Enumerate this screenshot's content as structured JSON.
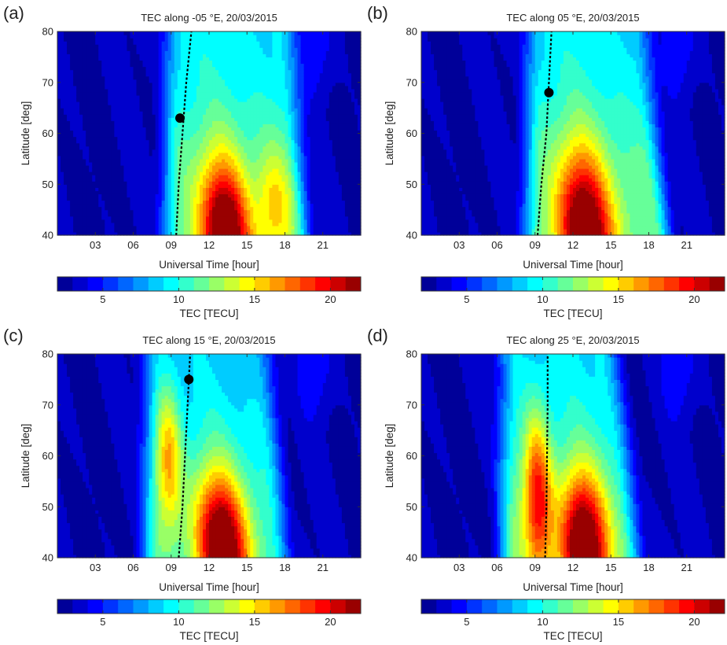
{
  "chart_data": [
    {
      "type": "heatmap",
      "panel_label": "(a)",
      "title": "TEC along -05 °E, 20/03/2015",
      "xlabel": "Universal Time [hour]",
      "ylabel": "Latitude [deg]",
      "xlim": [
        0,
        24
      ],
      "ylim": [
        40,
        80
      ],
      "xticks": [
        "03",
        "06",
        "09",
        "12",
        "15",
        "18",
        "21"
      ],
      "xtick_values": [
        3,
        6,
        9,
        12,
        15,
        18,
        21
      ],
      "yticks": [
        40,
        50,
        60,
        70,
        80
      ],
      "colorbar": {
        "label": "TEC [TECU]",
        "min": 2,
        "max": 22,
        "ticks": [
          5,
          10,
          15,
          20
        ],
        "levels": 20,
        "colormap": "jet"
      },
      "terminator": {
        "x": [
          9.4,
          9.6,
          9.9,
          10.2,
          10.6
        ],
        "y": [
          40,
          50,
          60,
          70,
          80
        ]
      },
      "marker": {
        "x": 9.7,
        "y": 63
      },
      "field": {
        "day_peaks": [
          {
            "t_south": 13.3,
            "t_north": 12.2,
            "lat_center": 40,
            "lat_width": 14,
            "amplitude": 13.0,
            "width_t": 1.8
          },
          {
            "t_south": 17.3,
            "t_north": 16.5,
            "lat_center": 46,
            "lat_width": 11,
            "amplitude": 4.0,
            "width_t": 1.3
          }
        ],
        "base": 12.0,
        "morning_edge": 8.8,
        "evening_edge_south": 19.4,
        "evening_edge_north": 18.3
      }
    },
    {
      "type": "heatmap",
      "panel_label": "(b)",
      "title": "TEC along 05 °E, 20/03/2015",
      "xlabel": "Universal Time [hour]",
      "ylabel": "Latitude [deg]",
      "xlim": [
        0,
        24
      ],
      "ylim": [
        40,
        80
      ],
      "xticks": [
        "03",
        "06",
        "09",
        "12",
        "15",
        "18",
        "21"
      ],
      "xtick_values": [
        3,
        6,
        9,
        12,
        15,
        18,
        21
      ],
      "yticks": [
        40,
        50,
        60,
        70,
        80
      ],
      "colorbar": {
        "label": "TEC [TECU]",
        "min": 2,
        "max": 22,
        "ticks": [
          5,
          10,
          15,
          20
        ],
        "levels": 20,
        "colormap": "jet"
      },
      "terminator": {
        "x": [
          9.2,
          9.5,
          9.9,
          10.1,
          10.3
        ],
        "y": [
          40,
          50,
          60,
          70,
          80
        ]
      },
      "marker": {
        "x": 10.1,
        "y": 68
      },
      "field": {
        "day_peaks": [
          {
            "t_south": 13.0,
            "t_north": 11.8,
            "lat_center": 40,
            "lat_width": 16,
            "amplitude": 13.0,
            "width_t": 2.0
          }
        ],
        "base": 12.0,
        "morning_edge": 8.6,
        "evening_edge_south": 19.2,
        "evening_edge_north": 17.5
      }
    },
    {
      "type": "heatmap",
      "panel_label": "(c)",
      "title": "TEC along 15 °E, 20/03/2015",
      "xlabel": "Universal Time [hour]",
      "ylabel": "Latitude [deg]",
      "xlim": [
        0,
        24
      ],
      "ylim": [
        40,
        80
      ],
      "xticks": [
        "03",
        "06",
        "09",
        "12",
        "15",
        "18",
        "21"
      ],
      "xtick_values": [
        3,
        6,
        9,
        12,
        15,
        18,
        21
      ],
      "yticks": [
        40,
        50,
        60,
        70,
        80
      ],
      "colorbar": {
        "label": "TEC [TECU]",
        "min": 2,
        "max": 22,
        "ticks": [
          5,
          10,
          15,
          20
        ],
        "levels": 20,
        "colormap": "jet"
      },
      "terminator": {
        "x": [
          9.6,
          9.9,
          10.1,
          10.3,
          10.5
        ],
        "y": [
          40,
          50,
          60,
          70,
          80
        ]
      },
      "marker": {
        "x": 10.4,
        "y": 75
      },
      "field": {
        "day_peaks": [
          {
            "t_south": 13.1,
            "t_north": 11.9,
            "lat_center": 42,
            "lat_width": 14,
            "amplitude": 14.0,
            "width_t": 1.9
          },
          {
            "t_south": 8.9,
            "t_north": 8.7,
            "lat_center": 60,
            "lat_width": 14,
            "amplitude": 6.5,
            "width_t": 1.0
          }
        ],
        "base": 11.0,
        "morning_edge": 7.2,
        "evening_edge_south": 17.8,
        "evening_edge_north": 16.6
      }
    },
    {
      "type": "heatmap",
      "panel_label": "(d)",
      "title": "TEC along 25 °E, 20/03/2015",
      "xlabel": "Universal Time [hour]",
      "ylabel": "Latitude [deg]",
      "xlim": [
        0,
        24
      ],
      "ylim": [
        40,
        80
      ],
      "xticks": [
        "03",
        "06",
        "09",
        "12",
        "15",
        "18",
        "21"
      ],
      "xtick_values": [
        3,
        6,
        9,
        12,
        15,
        18,
        21
      ],
      "yticks": [
        40,
        50,
        60,
        70,
        80
      ],
      "colorbar": {
        "label": "TEC [TECU]",
        "min": 2,
        "max": 22,
        "ticks": [
          5,
          10,
          15,
          20
        ],
        "levels": 20,
        "colormap": "jet"
      },
      "terminator": {
        "x": [
          9.8,
          9.9,
          9.95,
          10.0,
          10.0
        ],
        "y": [
          40,
          50,
          60,
          70,
          80
        ]
      },
      "marker": null,
      "field": {
        "day_peaks": [
          {
            "t_south": 12.9,
            "t_north": 12.2,
            "lat_center": 42,
            "lat_width": 14,
            "amplitude": 13.5,
            "width_t": 1.8
          },
          {
            "t_south": 9.3,
            "t_north": 9.0,
            "lat_center": 52,
            "lat_width": 16,
            "amplitude": 9.0,
            "width_t": 1.1
          }
        ],
        "base": 11.5,
        "morning_edge": 6.6,
        "evening_edge_south": 17.0,
        "evening_edge_north": 15.2
      }
    }
  ]
}
